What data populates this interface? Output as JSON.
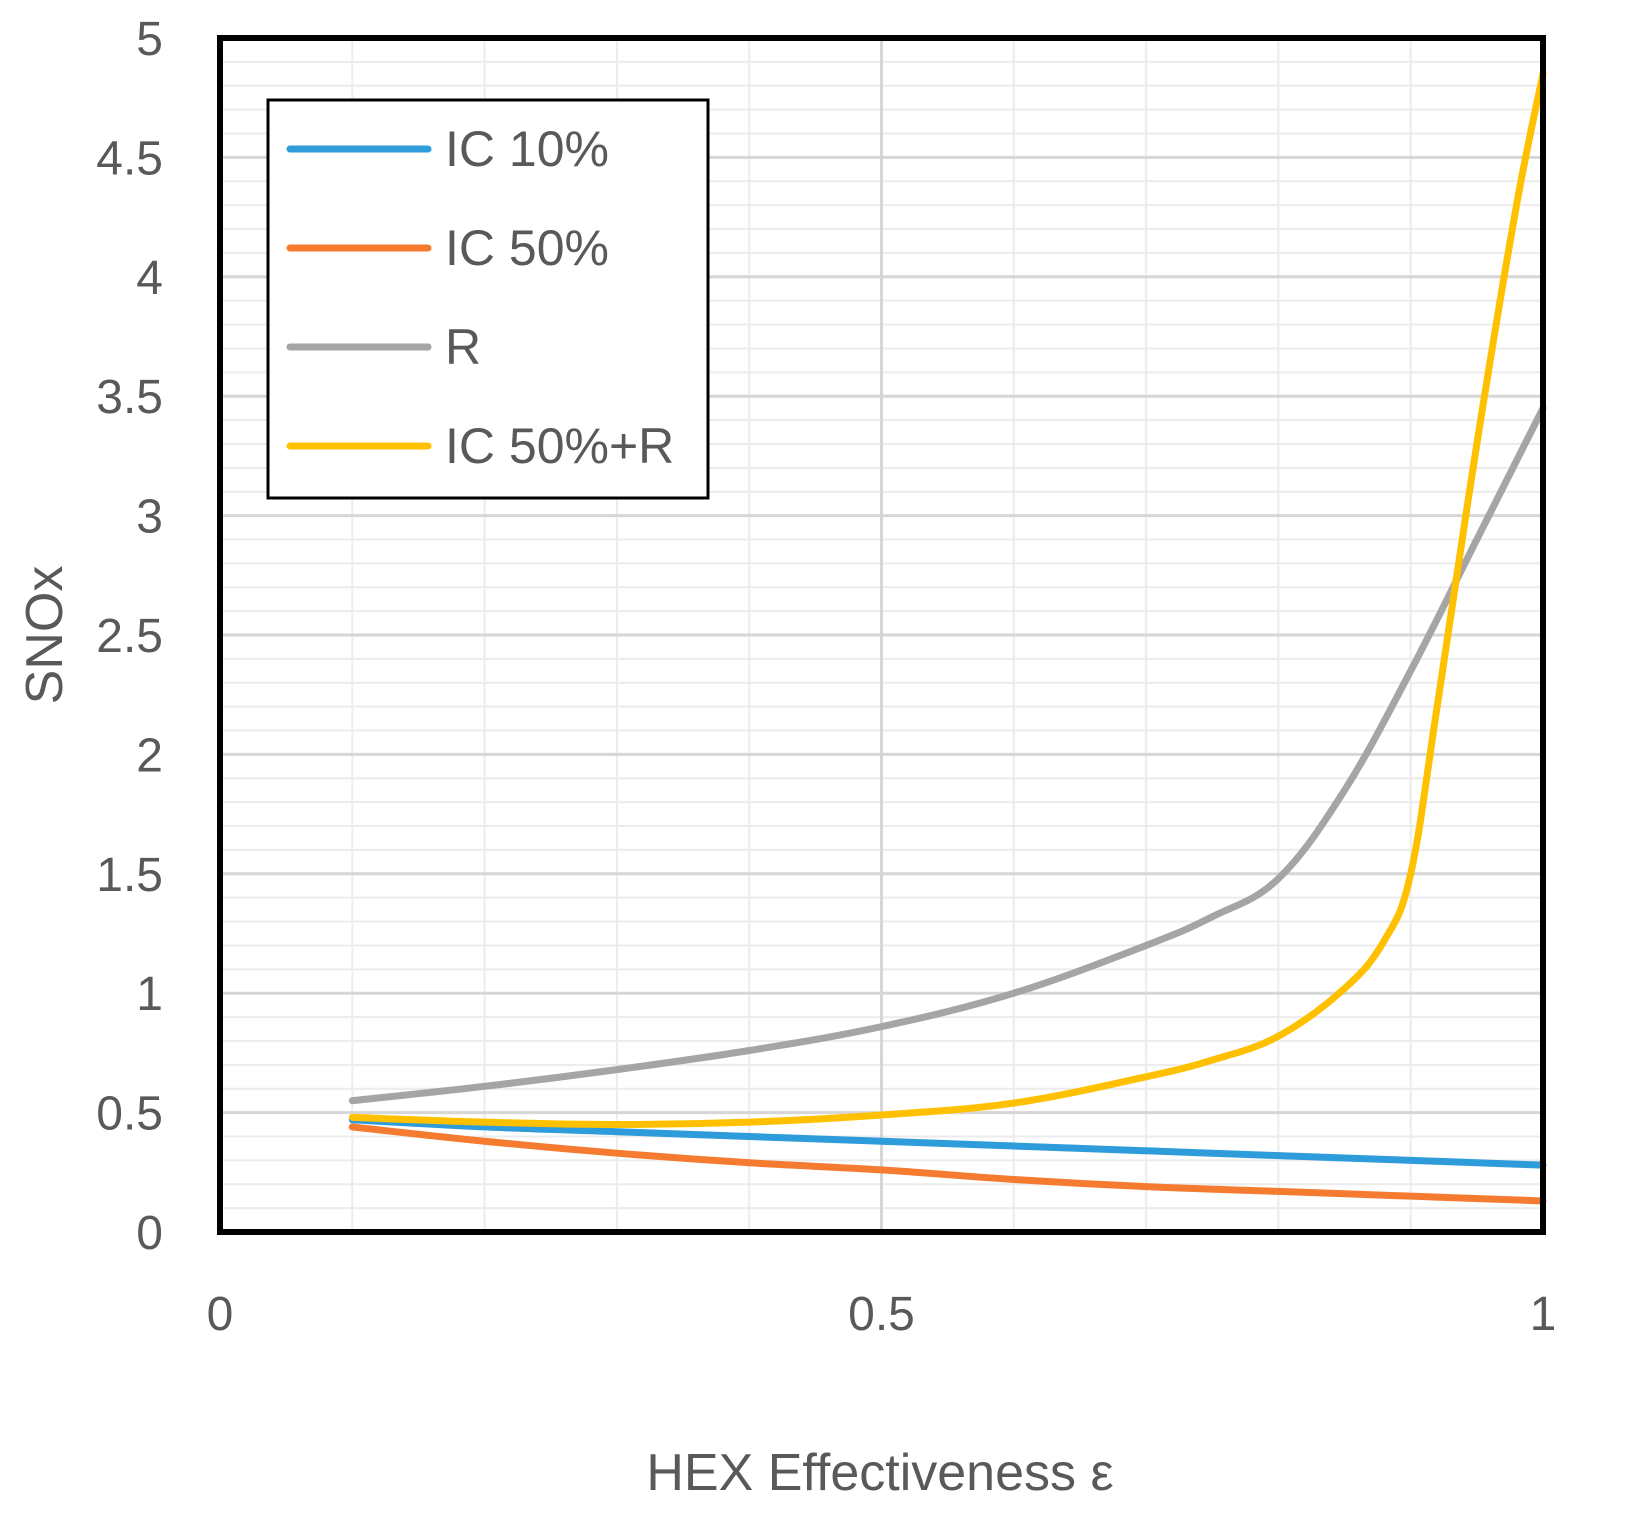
{
  "chart_data": {
    "type": "line",
    "title": "",
    "xlabel": "HEX Effectiveness ε",
    "ylabel": "SNOx",
    "xlim": [
      0,
      1
    ],
    "ylim": [
      0,
      5
    ],
    "x_ticks": [
      "0",
      "0.5",
      "1"
    ],
    "y_ticks": [
      "0",
      "0.5",
      "1",
      "1.5",
      "2",
      "2.5",
      "3",
      "3.5",
      "4",
      "4.5",
      "5"
    ],
    "grid": true,
    "legend_position": "top-left",
    "series": [
      {
        "name": "IC 10%",
        "color": "#2E9BDA",
        "x": [
          0.1,
          0.2,
          0.3,
          0.4,
          0.5,
          0.6,
          0.7,
          0.8,
          0.9,
          1.0
        ],
        "y": [
          0.47,
          0.44,
          0.42,
          0.4,
          0.38,
          0.36,
          0.34,
          0.32,
          0.3,
          0.28
        ]
      },
      {
        "name": "IC 50%",
        "color": "#F47B30",
        "x": [
          0.1,
          0.2,
          0.3,
          0.4,
          0.5,
          0.6,
          0.7,
          0.8,
          0.9,
          1.0
        ],
        "y": [
          0.44,
          0.38,
          0.33,
          0.29,
          0.26,
          0.22,
          0.19,
          0.17,
          0.15,
          0.13
        ]
      },
      {
        "name": "R",
        "color": "#A5A5A5",
        "x": [
          0.1,
          0.2,
          0.3,
          0.4,
          0.5,
          0.6,
          0.7,
          0.75,
          0.8,
          0.85,
          0.9,
          0.95,
          1.0
        ],
        "y": [
          0.55,
          0.61,
          0.68,
          0.76,
          0.86,
          1.0,
          1.2,
          1.32,
          1.48,
          1.85,
          2.35,
          2.9,
          3.45
        ]
      },
      {
        "name": "IC 50%+R",
        "color": "#FFC000",
        "x": [
          0.1,
          0.2,
          0.3,
          0.4,
          0.5,
          0.6,
          0.7,
          0.75,
          0.8,
          0.85,
          0.88,
          0.9,
          0.92,
          0.95,
          0.98,
          1.0
        ],
        "y": [
          0.48,
          0.46,
          0.45,
          0.46,
          0.49,
          0.54,
          0.65,
          0.72,
          0.82,
          1.02,
          1.22,
          1.5,
          2.2,
          3.3,
          4.3,
          4.85
        ]
      }
    ]
  }
}
